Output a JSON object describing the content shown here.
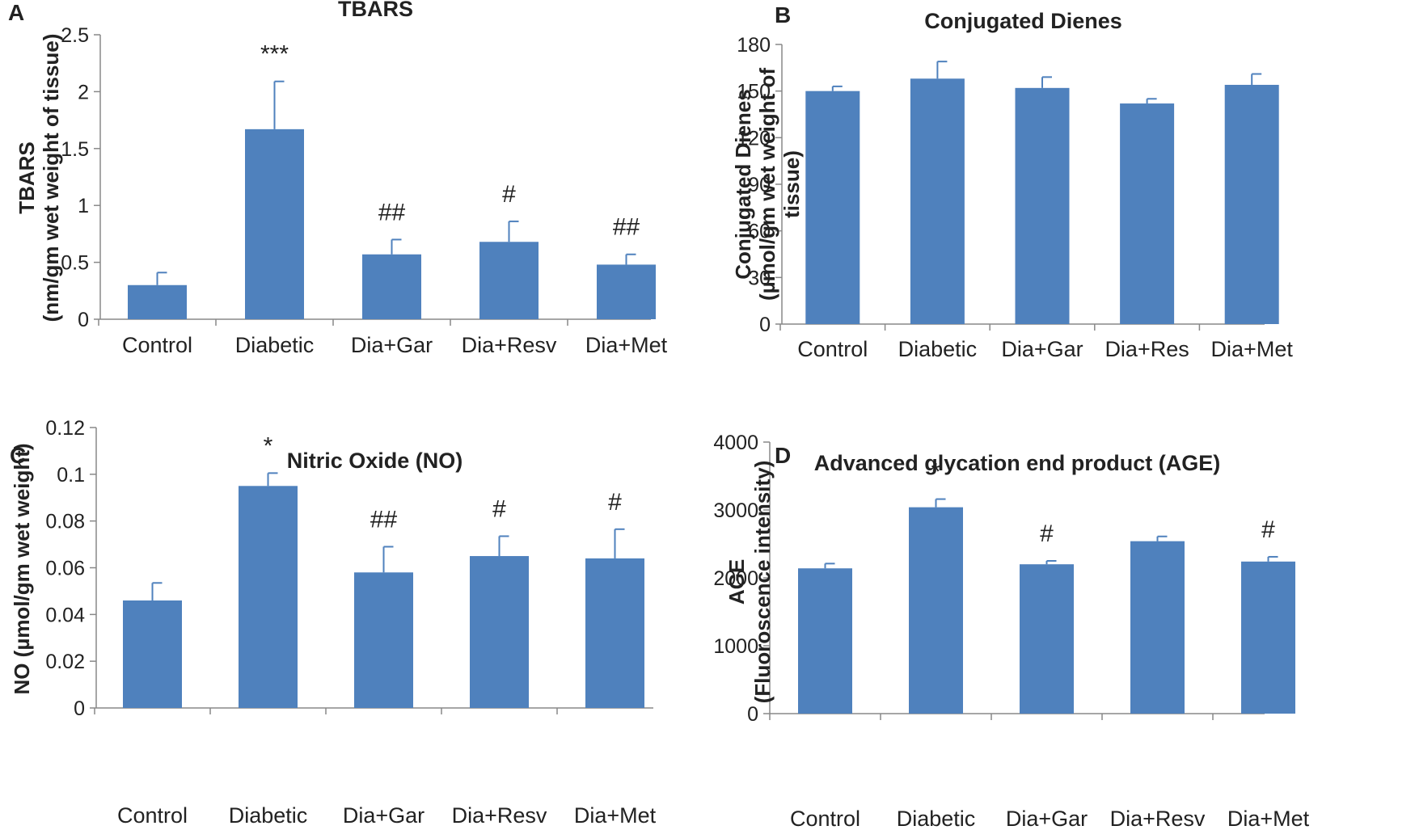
{
  "figure": {
    "bar_color": "#4f81bd",
    "axis_color": "#888888",
    "text_color": "#222222"
  },
  "chart_data": [
    {
      "panel": "A",
      "type": "bar",
      "title": "TBARS",
      "ylabel_lines": [
        "TBARS",
        "(nm/gm wet weight of tissue)"
      ],
      "categories": [
        "Control",
        "Diabetic",
        "Dia+Gar",
        "Dia+Resv",
        "Dia+Met"
      ],
      "values": [
        0.3,
        1.67,
        0.57,
        0.68,
        0.48
      ],
      "errors": [
        0.11,
        0.42,
        0.13,
        0.18,
        0.09
      ],
      "annotations": [
        "",
        "***",
        "##",
        "#",
        "##"
      ],
      "yticks": [
        0,
        0.5,
        1,
        1.5,
        2,
        2.5
      ],
      "ytick_labels": [
        "0",
        "0.5",
        "1",
        "1.5",
        "2",
        "2.5"
      ],
      "ylim": [
        0,
        2.5
      ]
    },
    {
      "panel": "B",
      "type": "bar",
      "title": "Conjugated Dienes",
      "ylabel_lines": [
        "Conjugated Dienes",
        "(µmol/gm wet weight of",
        "tissue)"
      ],
      "categories": [
        "Control",
        "Diabetic",
        "Dia+Gar",
        "Dia+Res",
        "Dia+Met"
      ],
      "values": [
        150,
        158,
        152,
        142,
        154
      ],
      "errors": [
        3,
        11,
        7,
        3,
        7
      ],
      "annotations": [
        "",
        "",
        "",
        "",
        ""
      ],
      "yticks": [
        0,
        30,
        60,
        90,
        120,
        150,
        180
      ],
      "ytick_labels": [
        "0",
        "30",
        "60",
        "90",
        "120",
        "150",
        "180"
      ],
      "ylim": [
        0,
        180
      ]
    },
    {
      "panel": "C",
      "type": "bar",
      "title": "Nitric Oxide (NO)",
      "ylabel_lines": [
        "NO (µmol/gm wet weight)"
      ],
      "categories": [
        "Control",
        "Diabetic",
        "Dia+Gar",
        "Dia+Resv",
        "Dia+Met"
      ],
      "values": [
        0.046,
        0.095,
        0.058,
        0.065,
        0.064
      ],
      "errors": [
        0.0075,
        0.0055,
        0.011,
        0.0085,
        0.0125
      ],
      "annotations": [
        "",
        "*",
        "##",
        "#",
        "#"
      ],
      "yticks": [
        0,
        0.02,
        0.04,
        0.06,
        0.08,
        0.1,
        0.12
      ],
      "ytick_labels": [
        "0",
        "0.02",
        "0.04",
        "0.06",
        "0.08",
        "0.1",
        "0.12"
      ],
      "ylim": [
        0,
        0.12
      ]
    },
    {
      "panel": "D",
      "type": "bar",
      "title": "Advanced glycation end product (AGE)",
      "ylabel_lines": [
        "AGE",
        "(Fluoroscence intensity)"
      ],
      "categories": [
        "Control",
        "Diabetic",
        "Dia+Gar",
        "Dia+Resv",
        "Dia+Met"
      ],
      "values": [
        2140,
        3040,
        2200,
        2540,
        2240
      ],
      "errors": [
        70,
        120,
        50,
        70,
        70
      ],
      "annotations": [
        "",
        "*",
        "#",
        "",
        "#"
      ],
      "yticks": [
        0,
        1000,
        2000,
        3000,
        4000
      ],
      "ytick_labels": [
        "0",
        "1000",
        "2000",
        "3000",
        "4000"
      ],
      "ylim": [
        0,
        4000
      ]
    }
  ]
}
